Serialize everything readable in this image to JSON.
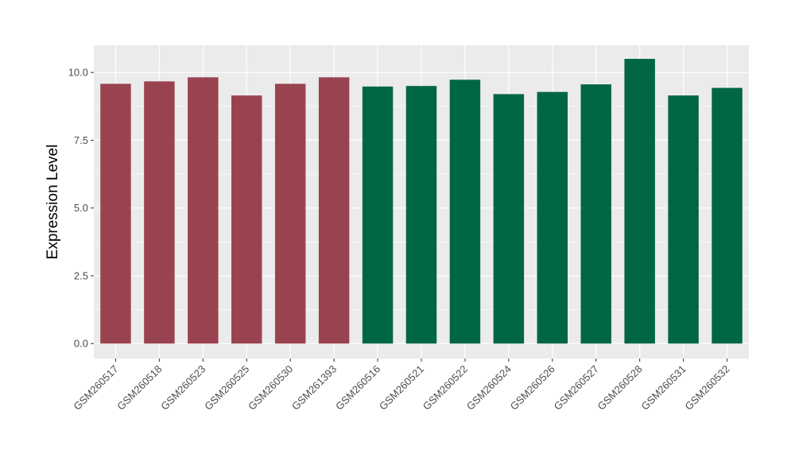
{
  "chart_data": {
    "type": "bar",
    "ylabel": "Expression Level",
    "xlabel": "",
    "title": "",
    "ylim": [
      -0.55,
      11.0
    ],
    "yticks": [
      0.0,
      2.5,
      5.0,
      7.5,
      10.0
    ],
    "ytick_labels": [
      "0.0",
      "2.5",
      "5.0",
      "7.5",
      "10.0"
    ],
    "grid": true,
    "legend": "none",
    "colors": {
      "panel_background": "#EBEBEB",
      "grid": "#FFFFFF",
      "group_1": "#9A4350",
      "group_2": "#006644",
      "tick_text": "#4D4D4D",
      "label_text": "#000000"
    },
    "categories": [
      "GSM260517",
      "GSM260518",
      "GSM260523",
      "GSM260525",
      "GSM260530",
      "GSM261393",
      "GSM260516",
      "GSM260521",
      "GSM260522",
      "GSM260524",
      "GSM260526",
      "GSM260527",
      "GSM260528",
      "GSM260531",
      "GSM260532"
    ],
    "values": [
      9.58,
      9.67,
      9.82,
      9.15,
      9.58,
      9.82,
      9.48,
      9.5,
      9.73,
      9.2,
      9.28,
      9.56,
      10.5,
      9.15,
      9.43
    ],
    "groups": [
      1,
      1,
      1,
      1,
      1,
      1,
      2,
      2,
      2,
      2,
      2,
      2,
      2,
      2,
      2
    ]
  }
}
